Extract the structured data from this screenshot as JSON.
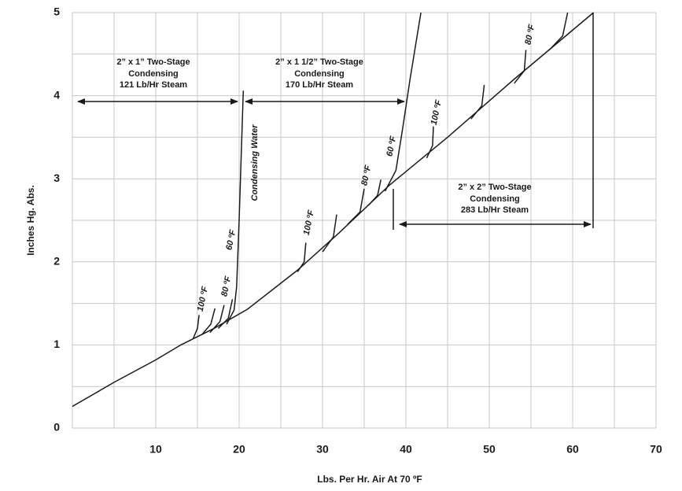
{
  "chart_data": {
    "type": "line",
    "x_label": "Lbs. Per Hr. Air At 70 ºF",
    "y_label": "Inches Hg. Abs.",
    "xlim": [
      0,
      70
    ],
    "ylim": [
      0,
      5
    ],
    "xticks": [
      10,
      20,
      30,
      40,
      50,
      60,
      70
    ],
    "yticks": [
      0,
      1,
      2,
      3,
      4,
      5
    ],
    "xgrid": [
      0,
      5,
      10,
      15,
      20,
      25,
      30,
      35,
      40,
      45,
      50,
      55,
      60,
      65,
      70
    ],
    "ygrid": [
      0,
      0.5,
      1,
      1.5,
      2,
      2.5,
      3,
      3.5,
      4,
      4.5,
      5
    ],
    "grid_color": "#c8c8c8",
    "color": "#1a1a1a",
    "series": [
      {
        "x": [
          0,
          5,
          10,
          13,
          17,
          21,
          27,
          32,
          38,
          45,
          53,
          62.5
        ],
        "values": [
          0.26,
          0.55,
          0.82,
          1.0,
          1.2,
          1.43,
          1.9,
          2.35,
          2.92,
          3.5,
          4.2,
          5
        ]
      },
      {
        "x": [
          14.5,
          15.0,
          15.2
        ],
        "values": [
          1.08,
          1.2,
          1.36
        ]
      },
      {
        "x": [
          15.5,
          16.6,
          17.1
        ],
        "values": [
          1.12,
          1.25,
          1.44
        ]
      },
      {
        "x": [
          16.5,
          17.7,
          18.2
        ],
        "values": [
          1.15,
          1.28,
          1.48
        ]
      },
      {
        "x": [
          17.5,
          18.7,
          19.2
        ],
        "values": [
          1.2,
          1.32,
          1.55
        ]
      },
      {
        "x": [
          18.5,
          19.4,
          19.7,
          20.0,
          20.5
        ],
        "values": [
          1.25,
          1.42,
          1.7,
          2.5,
          4.06
        ]
      },
      {
        "x": [
          27,
          27.8,
          28
        ],
        "values": [
          1.88,
          2.0,
          2.23
        ]
      },
      {
        "x": [
          30,
          31.3,
          31.7
        ],
        "values": [
          2.12,
          2.3,
          2.57
        ]
      },
      {
        "x": [
          33,
          34.5,
          35
        ],
        "values": [
          2.45,
          2.6,
          2.88
        ]
      },
      {
        "x": [
          35.5,
          36.6,
          37
        ],
        "values": [
          2.68,
          2.8,
          2.99
        ]
      },
      {
        "x": [
          37.5,
          38.8,
          39.6,
          40.5,
          41.8
        ],
        "values": [
          2.85,
          3.1,
          3.6,
          4.2,
          5
        ]
      },
      {
        "x": [
          42.5,
          43.2,
          43.3
        ],
        "values": [
          3.25,
          3.4,
          3.63
        ]
      },
      {
        "x": [
          47.8,
          49.1,
          49.4
        ],
        "values": [
          3.72,
          3.88,
          4.13
        ]
      },
      {
        "x": [
          53,
          54.2,
          54.4
        ],
        "values": [
          4.15,
          4.3,
          4.55
        ]
      },
      {
        "x": [
          57.2,
          58.8,
          59.4
        ],
        "values": [
          4.55,
          4.72,
          5
        ]
      }
    ],
    "annotations": [
      "100 ºF",
      "80 ºF",
      "60 ºF",
      "Condensing Water",
      "100 ºF",
      "80 ºF",
      "60 ºF",
      "100 ºF",
      "80 ºF",
      "2” x 1” Two-Stage",
      "Condensing",
      "121 Lb/Hr Steam",
      "2” x 1 1/2” Two-Stage",
      "Condensing",
      "170 Lb/Hr Steam",
      "2” x 2” Two-Stage",
      "Condensing",
      "283 Lb/Hr Steam"
    ]
  }
}
